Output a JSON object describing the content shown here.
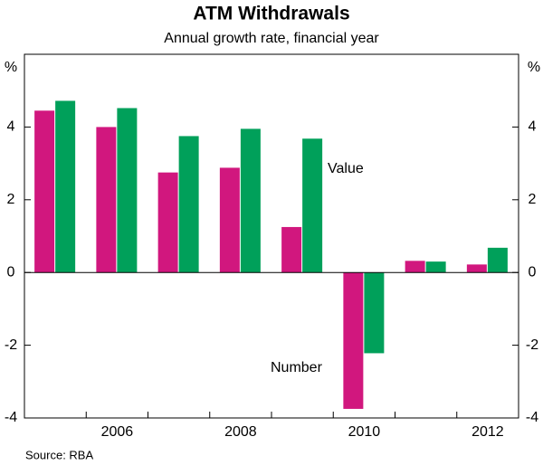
{
  "chart_data": {
    "type": "bar",
    "title": "ATM Withdrawals",
    "subtitle": "Annual growth rate, financial year",
    "y_unit": "%",
    "source": "Source: RBA",
    "categories": [
      null,
      "2006",
      null,
      "2008",
      null,
      "2010",
      null,
      "2012"
    ],
    "series": [
      {
        "name": "Number",
        "color": "#d1177e",
        "values": [
          4.45,
          4.0,
          2.75,
          2.88,
          1.25,
          -3.75,
          0.32,
          0.22
        ]
      },
      {
        "name": "Value",
        "color": "#00a05a",
        "values": [
          4.72,
          4.52,
          3.75,
          3.95,
          3.68,
          -2.22,
          0.3,
          0.68
        ]
      }
    ],
    "ylim": [
      -4,
      6
    ],
    "yticks": [
      -4,
      -2,
      0,
      2,
      4
    ],
    "grid": false
  }
}
